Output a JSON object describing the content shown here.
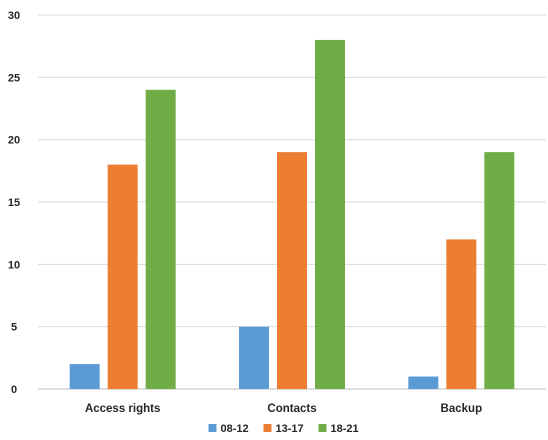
{
  "chart_data": {
    "type": "bar",
    "title": "",
    "xlabel": "",
    "ylabel": "",
    "categories": [
      "Access rights",
      "Contacts",
      "Backup"
    ],
    "series": [
      {
        "name": "08-12",
        "color": "#5b9bd5",
        "values": [
          2,
          5,
          1
        ]
      },
      {
        "name": "13-17",
        "color": "#ed7d31",
        "values": [
          18,
          19,
          12
        ]
      },
      {
        "name": "18-21",
        "color": "#70ad47",
        "values": [
          24,
          28,
          19
        ]
      }
    ],
    "ylim": [
      0,
      30
    ],
    "yticks": [
      0,
      5,
      10,
      15,
      20,
      25,
      30
    ],
    "grid": true,
    "legend_position": "bottom"
  }
}
